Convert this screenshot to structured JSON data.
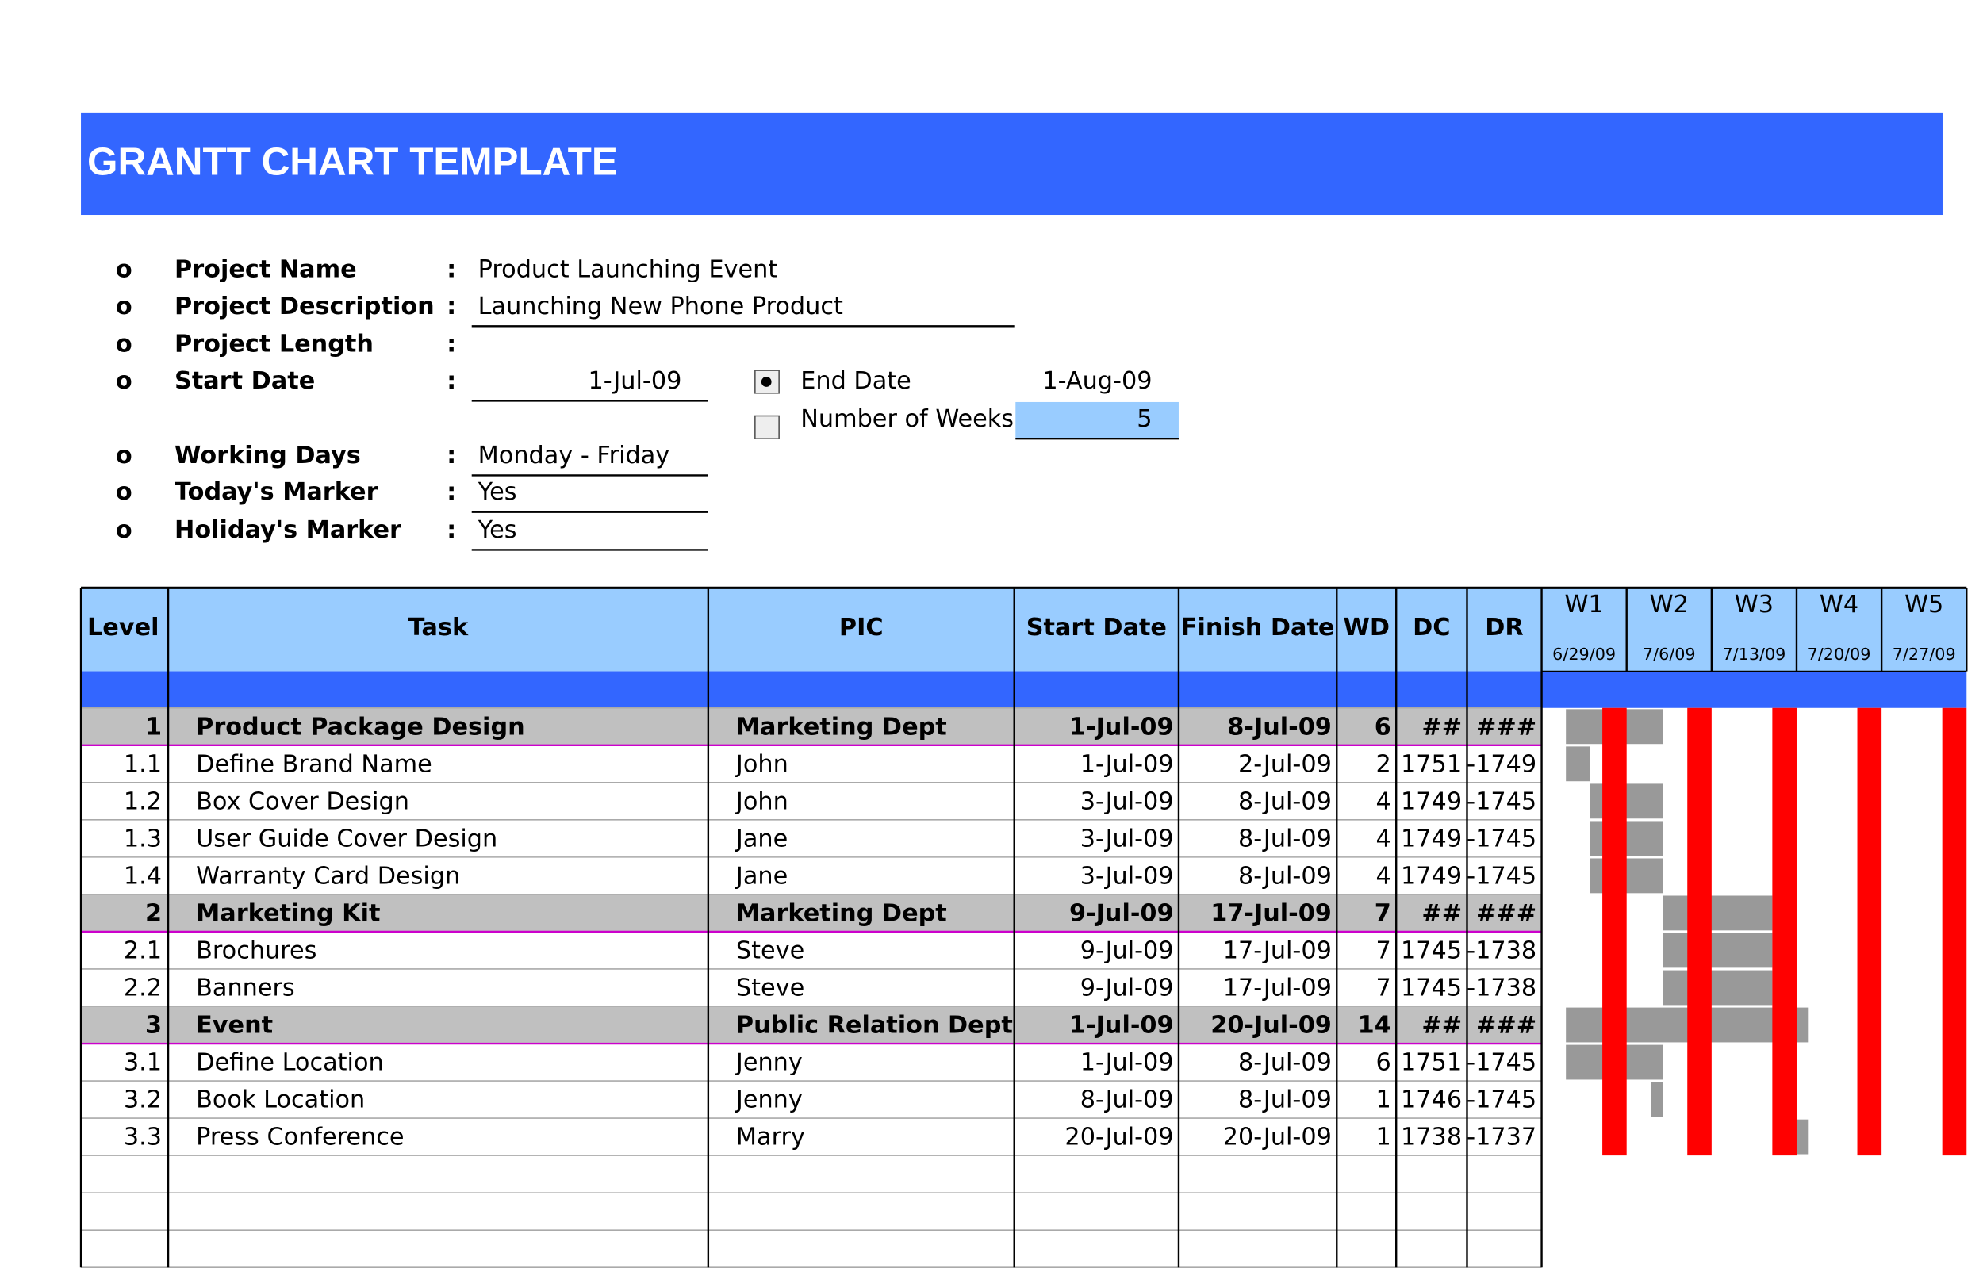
{
  "header": {
    "title": "GRANTT CHART TEMPLATE"
  },
  "project": {
    "bullet": "o",
    "separator": ":",
    "fields": [
      {
        "label": "Project Name",
        "value": "Product Launching Event"
      },
      {
        "label": "Project Description",
        "value": "Launching New Phone Product"
      },
      {
        "label": "Project Length",
        "value": ""
      },
      {
        "label": "Start Date",
        "value": "1-Jul-09"
      },
      {
        "label": "Working Days",
        "value": "Monday - Friday"
      },
      {
        "label": "Today's Marker",
        "value": "Yes"
      },
      {
        "label": "Holiday's Marker",
        "value": "Yes"
      }
    ],
    "end_date": {
      "label": "End Date",
      "value": "1-Aug-09"
    },
    "weeks": {
      "label": "Number of Weeks",
      "value": 5
    }
  },
  "table": {
    "columns": [
      "Level",
      "Task",
      "PIC",
      "Start Date",
      "Finish Date",
      "WD",
      "DC",
      "DR"
    ],
    "rows": [
      [
        "1",
        "Product Package Design",
        "Marketing Dept",
        "1-Jul-09",
        "8-Jul-09",
        6,
        "##",
        "###"
      ],
      [
        "1.1",
        "Define Brand Name",
        "John",
        "1-Jul-09",
        "2-Jul-09",
        2,
        1751,
        -1749
      ],
      [
        "1.2",
        "Box Cover Design",
        "John",
        "3-Jul-09",
        "8-Jul-09",
        4,
        1749,
        -1745
      ],
      [
        "1.3",
        "User Guide Cover Design",
        "Jane",
        "3-Jul-09",
        "8-Jul-09",
        4,
        1749,
        -1745
      ],
      [
        "1.4",
        "Warranty Card Design",
        "Jane",
        "3-Jul-09",
        "8-Jul-09",
        4,
        1749,
        -1745
      ],
      [
        "2",
        "Marketing Kit",
        "Marketing Dept",
        "9-Jul-09",
        "17-Jul-09",
        7,
        "##",
        "###"
      ],
      [
        "2.1",
        "Brochures",
        "Steve",
        "9-Jul-09",
        "17-Jul-09",
        7,
        1745,
        -1738
      ],
      [
        "2.2",
        "Banners",
        "Steve",
        "9-Jul-09",
        "17-Jul-09",
        7,
        1745,
        -1738
      ],
      [
        "3",
        "Event",
        "Public Relation Dept",
        "1-Jul-09",
        "20-Jul-09",
        14,
        "##",
        "###"
      ],
      [
        "3.1",
        "Define Location",
        "Jenny",
        "1-Jul-09",
        "8-Jul-09",
        6,
        1751,
        -1745
      ],
      [
        "3.2",
        "Book Location",
        "Jenny",
        "8-Jul-09",
        "8-Jul-09",
        1,
        1746,
        -1745
      ],
      [
        "3.3",
        "Press Conference",
        "Marry",
        "20-Jul-09",
        "20-Jul-09",
        1,
        1738,
        -1737
      ]
    ]
  },
  "timeline": {
    "weeks": [
      {
        "label": "W1",
        "date": "6/29/09"
      },
      {
        "label": "W2",
        "date": "7/6/09"
      },
      {
        "label": "W3",
        "date": "7/13/09"
      },
      {
        "label": "W4",
        "date": "7/20/09"
      },
      {
        "label": "W5",
        "date": "7/27/09"
      }
    ]
  }
}
